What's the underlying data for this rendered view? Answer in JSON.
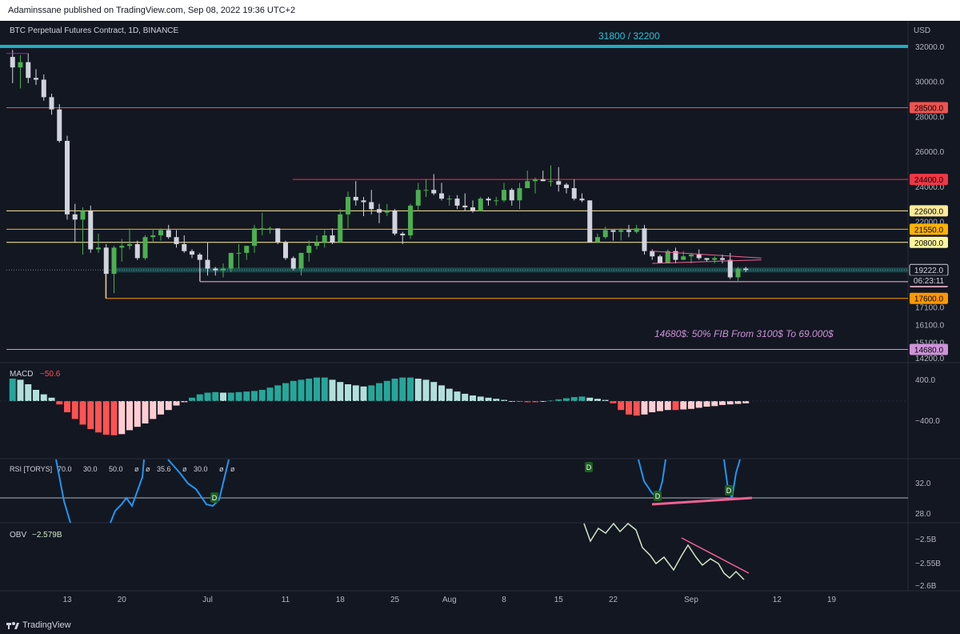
{
  "header": {
    "published_by": "Adaminssane published on TradingView.com, Sep 08, 2022 19:36 UTC+2"
  },
  "footer": {
    "brand": "TradingView"
  },
  "colors": {
    "background": "#131722",
    "candle_up": "#4caf50",
    "candle_down": "#d1d4dc",
    "macd_pos_strong": "#26a69a",
    "macd_pos_weak": "#b2dfdb",
    "macd_neg_strong": "#ff5252",
    "macd_neg_weak": "#ffcdd2",
    "rsi_line": "#2196f3",
    "obv_line": "#d1e7c7"
  },
  "chart_data": [
    {
      "type": "candlestick",
      "title": "BTC Perpetual Futures Contract, 1D, BINANCE",
      "y_axis_unit": "USD",
      "y_ticks": [
        "32000.0",
        "30000.0",
        "28000.0",
        "26000.0",
        "24000.0",
        "22000.0",
        "20800.0",
        "17100.0",
        "16100.0",
        "15100.0",
        "14200.0"
      ],
      "ylim": [
        14000,
        32700
      ],
      "x_ticks": [
        "13",
        "20",
        "Jul",
        "11",
        "18",
        "25",
        "Aug",
        "8",
        "15",
        "22",
        "Sep",
        "12",
        "19"
      ],
      "x_tick_dates": [
        "2022-06-13",
        "2022-06-20",
        "2022-07-01",
        "2022-07-11",
        "2022-07-18",
        "2022-07-25",
        "2022-08-01",
        "2022-08-08",
        "2022-08-15",
        "2022-08-22",
        "2022-09-01",
        "2022-09-12",
        "2022-09-19"
      ],
      "candles_approx": [
        {
          "d": "2022-06-06",
          "o": 31400,
          "h": 31800,
          "c": 30800,
          "l": 29900
        },
        {
          "d": "2022-06-07",
          "o": 30800,
          "h": 31500,
          "c": 31100,
          "l": 29600
        },
        {
          "d": "2022-06-08",
          "o": 31100,
          "h": 31600,
          "c": 30200,
          "l": 29900
        },
        {
          "d": "2022-06-09",
          "o": 30200,
          "h": 30700,
          "c": 30100,
          "l": 29800
        },
        {
          "d": "2022-06-10",
          "o": 30100,
          "h": 30400,
          "c": 29100,
          "l": 28900
        },
        {
          "d": "2022-06-11",
          "o": 29100,
          "h": 29300,
          "c": 28400,
          "l": 28100
        },
        {
          "d": "2022-06-12",
          "o": 28400,
          "h": 28700,
          "c": 26600,
          "l": 26500
        },
        {
          "d": "2022-06-13",
          "o": 26600,
          "h": 26900,
          "c": 22400,
          "l": 22100
        },
        {
          "d": "2022-06-14",
          "o": 22400,
          "h": 23000,
          "c": 22100,
          "l": 20800
        },
        {
          "d": "2022-06-15",
          "o": 22100,
          "h": 22800,
          "c": 22600,
          "l": 20100
        },
        {
          "d": "2022-06-16",
          "o": 22600,
          "h": 22900,
          "c": 20400,
          "l": 20200
        },
        {
          "d": "2022-06-17",
          "o": 20400,
          "h": 21300,
          "c": 20500,
          "l": 20200
        },
        {
          "d": "2022-06-18",
          "o": 20500,
          "h": 20700,
          "c": 19000,
          "l": 17600
        },
        {
          "d": "2022-06-19",
          "o": 19000,
          "h": 20600,
          "c": 20500,
          "l": 17900
        },
        {
          "d": "2022-06-20",
          "o": 20500,
          "h": 21000,
          "c": 20600,
          "l": 19700
        },
        {
          "d": "2022-06-21",
          "o": 20600,
          "h": 21600,
          "c": 20700,
          "l": 20400
        },
        {
          "d": "2022-06-22",
          "o": 20700,
          "h": 20900,
          "c": 19900,
          "l": 19800
        },
        {
          "d": "2022-06-23",
          "o": 19900,
          "h": 21200,
          "c": 21100,
          "l": 19800
        },
        {
          "d": "2022-06-24",
          "o": 21100,
          "h": 21500,
          "c": 21200,
          "l": 20800
        },
        {
          "d": "2022-06-25",
          "o": 21200,
          "h": 21600,
          "c": 21500,
          "l": 20900
        },
        {
          "d": "2022-06-26",
          "o": 21500,
          "h": 21800,
          "c": 21100,
          "l": 21000
        },
        {
          "d": "2022-06-27",
          "o": 21100,
          "h": 21500,
          "c": 20700,
          "l": 20500
        },
        {
          "d": "2022-06-28",
          "o": 20700,
          "h": 21200,
          "c": 20300,
          "l": 20200
        },
        {
          "d": "2022-06-29",
          "o": 20300,
          "h": 20400,
          "c": 20100,
          "l": 19900
        },
        {
          "d": "2022-06-30",
          "o": 20100,
          "h": 20200,
          "c": 19800,
          "l": 18600
        },
        {
          "d": "2022-07-01",
          "o": 19800,
          "h": 20800,
          "c": 19300,
          "l": 18900
        },
        {
          "d": "2022-07-02",
          "o": 19300,
          "h": 19400,
          "c": 19200,
          "l": 18900
        },
        {
          "d": "2022-07-03",
          "o": 19200,
          "h": 19600,
          "c": 19300,
          "l": 18800
        },
        {
          "d": "2022-07-04",
          "o": 19300,
          "h": 20200,
          "c": 20200,
          "l": 19100
        },
        {
          "d": "2022-07-05",
          "o": 20200,
          "h": 20700,
          "c": 20200,
          "l": 19300
        },
        {
          "d": "2022-07-06",
          "o": 20200,
          "h": 20600,
          "c": 20600,
          "l": 19800
        },
        {
          "d": "2022-07-07",
          "o": 20600,
          "h": 21800,
          "c": 21600,
          "l": 20200
        },
        {
          "d": "2022-07-08",
          "o": 21600,
          "h": 22500,
          "c": 21600,
          "l": 21200
        },
        {
          "d": "2022-07-09",
          "o": 21600,
          "h": 21700,
          "c": 21600,
          "l": 21300
        },
        {
          "d": "2022-07-10",
          "o": 21600,
          "h": 21600,
          "c": 20800,
          "l": 20700
        },
        {
          "d": "2022-07-11",
          "o": 20800,
          "h": 20900,
          "c": 19900,
          "l": 19800
        },
        {
          "d": "2022-07-12",
          "o": 19900,
          "h": 20000,
          "c": 19300,
          "l": 19200
        },
        {
          "d": "2022-07-13",
          "o": 19300,
          "h": 20200,
          "c": 20200,
          "l": 18900
        },
        {
          "d": "2022-07-14",
          "o": 20200,
          "h": 20900,
          "c": 20600,
          "l": 19700
        },
        {
          "d": "2022-07-15",
          "o": 20600,
          "h": 21200,
          "c": 20800,
          "l": 20400
        },
        {
          "d": "2022-07-16",
          "o": 20800,
          "h": 21500,
          "c": 21200,
          "l": 20500
        },
        {
          "d": "2022-07-17",
          "o": 21200,
          "h": 21600,
          "c": 20800,
          "l": 20700
        },
        {
          "d": "2022-07-18",
          "o": 20800,
          "h": 22700,
          "c": 22400,
          "l": 20800
        },
        {
          "d": "2022-07-19",
          "o": 22400,
          "h": 23700,
          "c": 23400,
          "l": 21600
        },
        {
          "d": "2022-07-20",
          "o": 23400,
          "h": 24300,
          "c": 23200,
          "l": 22900
        },
        {
          "d": "2022-07-21",
          "o": 23200,
          "h": 23400,
          "c": 23100,
          "l": 22300
        },
        {
          "d": "2022-07-22",
          "o": 23100,
          "h": 23800,
          "c": 22700,
          "l": 22400
        },
        {
          "d": "2022-07-23",
          "o": 22700,
          "h": 23000,
          "c": 22500,
          "l": 21900
        },
        {
          "d": "2022-07-24",
          "o": 22500,
          "h": 23000,
          "c": 22600,
          "l": 22300
        },
        {
          "d": "2022-07-25",
          "o": 22600,
          "h": 22700,
          "c": 21300,
          "l": 21200
        },
        {
          "d": "2022-07-26",
          "o": 21300,
          "h": 21400,
          "c": 21200,
          "l": 20700
        },
        {
          "d": "2022-07-27",
          "o": 21200,
          "h": 23000,
          "c": 22900,
          "l": 21000
        },
        {
          "d": "2022-07-28",
          "o": 22900,
          "h": 24200,
          "c": 23800,
          "l": 22600
        },
        {
          "d": "2022-07-29",
          "o": 23800,
          "h": 24400,
          "c": 23800,
          "l": 23400
        },
        {
          "d": "2022-07-30",
          "o": 23800,
          "h": 24700,
          "c": 23600,
          "l": 23500
        },
        {
          "d": "2022-07-31",
          "o": 23600,
          "h": 24200,
          "c": 23300,
          "l": 23200
        },
        {
          "d": "2022-08-01",
          "o": 23300,
          "h": 23500,
          "c": 23300,
          "l": 22900
        },
        {
          "d": "2022-08-02",
          "o": 23300,
          "h": 23500,
          "c": 22900,
          "l": 22700
        },
        {
          "d": "2022-08-03",
          "o": 22900,
          "h": 23600,
          "c": 22800,
          "l": 22600
        },
        {
          "d": "2022-08-04",
          "o": 22800,
          "h": 23200,
          "c": 22600,
          "l": 22500
        },
        {
          "d": "2022-08-05",
          "o": 22600,
          "h": 23400,
          "c": 23300,
          "l": 22600
        },
        {
          "d": "2022-08-06",
          "o": 23300,
          "h": 23400,
          "c": 23200,
          "l": 22900
        },
        {
          "d": "2022-08-07",
          "o": 23200,
          "h": 23400,
          "c": 23200,
          "l": 22900
        },
        {
          "d": "2022-08-08",
          "o": 23200,
          "h": 24200,
          "c": 23800,
          "l": 23100
        },
        {
          "d": "2022-08-09",
          "o": 23800,
          "h": 23900,
          "c": 23200,
          "l": 22900
        },
        {
          "d": "2022-08-10",
          "o": 23200,
          "h": 24200,
          "c": 23900,
          "l": 22700
        },
        {
          "d": "2022-08-11",
          "o": 23900,
          "h": 24900,
          "c": 24300,
          "l": 23900
        },
        {
          "d": "2022-08-12",
          "o": 24300,
          "h": 24500,
          "c": 24400,
          "l": 23600
        },
        {
          "d": "2022-08-13",
          "o": 24400,
          "h": 24900,
          "c": 24300,
          "l": 24300
        },
        {
          "d": "2022-08-14",
          "o": 24300,
          "h": 25200,
          "c": 24300,
          "l": 24000
        },
        {
          "d": "2022-08-15",
          "o": 24300,
          "h": 25100,
          "c": 24100,
          "l": 23700
        },
        {
          "d": "2022-08-16",
          "o": 24100,
          "h": 24200,
          "c": 23900,
          "l": 23600
        },
        {
          "d": "2022-08-17",
          "o": 23900,
          "h": 24400,
          "c": 23300,
          "l": 23200
        },
        {
          "d": "2022-08-18",
          "o": 23300,
          "h": 23600,
          "c": 23200,
          "l": 23100
        },
        {
          "d": "2022-08-19",
          "o": 23200,
          "h": 23200,
          "c": 20800,
          "l": 20800
        },
        {
          "d": "2022-08-20",
          "o": 20800,
          "h": 21300,
          "c": 21100,
          "l": 20800
        },
        {
          "d": "2022-08-21",
          "o": 21100,
          "h": 21700,
          "c": 21500,
          "l": 21000
        },
        {
          "d": "2022-08-22",
          "o": 21500,
          "h": 21500,
          "c": 21400,
          "l": 20900
        },
        {
          "d": "2022-08-23",
          "o": 21400,
          "h": 21600,
          "c": 21500,
          "l": 20900
        },
        {
          "d": "2022-08-24",
          "o": 21500,
          "h": 21800,
          "c": 21400,
          "l": 21100
        },
        {
          "d": "2022-08-25",
          "o": 21400,
          "h": 21800,
          "c": 21600,
          "l": 21300
        },
        {
          "d": "2022-08-26",
          "o": 21600,
          "h": 21800,
          "c": 20300,
          "l": 20100
        },
        {
          "d": "2022-08-27",
          "o": 20300,
          "h": 20400,
          "c": 20000,
          "l": 19800
        },
        {
          "d": "2022-08-28",
          "o": 20000,
          "h": 20100,
          "c": 19600,
          "l": 19600
        },
        {
          "d": "2022-08-29",
          "o": 19600,
          "h": 20400,
          "c": 20300,
          "l": 19600
        },
        {
          "d": "2022-08-30",
          "o": 20300,
          "h": 20500,
          "c": 19800,
          "l": 19600
        },
        {
          "d": "2022-08-31",
          "o": 19800,
          "h": 20300,
          "c": 20000,
          "l": 19800
        },
        {
          "d": "2022-09-01",
          "o": 20000,
          "h": 20200,
          "c": 20100,
          "l": 19600
        },
        {
          "d": "2022-09-02",
          "o": 20100,
          "h": 20400,
          "c": 19900,
          "l": 19800
        },
        {
          "d": "2022-09-03",
          "o": 19900,
          "h": 19900,
          "c": 19800,
          "l": 19700
        },
        {
          "d": "2022-09-04",
          "o": 19800,
          "h": 20000,
          "c": 19900,
          "l": 19600
        },
        {
          "d": "2022-09-05",
          "o": 19900,
          "h": 20100,
          "c": 19800,
          "l": 19600
        },
        {
          "d": "2022-09-06",
          "o": 19800,
          "h": 20200,
          "c": 18800,
          "l": 18700
        },
        {
          "d": "2022-09-07",
          "o": 18800,
          "h": 19400,
          "c": 19300,
          "l": 18600
        },
        {
          "d": "2022-09-08",
          "o": 19300,
          "h": 19400,
          "c": 19222,
          "l": 19100
        }
      ],
      "levels": [
        {
          "name": "32000",
          "price": 32000,
          "color": "#26c6da",
          "label": "31800 / 32200"
        },
        {
          "name": "28500",
          "price": 28500,
          "color": "#ef5350",
          "label": "28500.0"
        },
        {
          "name": "24400",
          "price": 24400,
          "color": "#f23645",
          "label": "24400.0"
        },
        {
          "name": "22600",
          "price": 22600,
          "color": "#ffeb99",
          "label": "22600.0"
        },
        {
          "name": "21550",
          "price": 21550,
          "color": "#ffb300",
          "label": "21550.0"
        },
        {
          "name": "20800",
          "price": 20800,
          "color": "#fff59d",
          "label": "20800.0"
        },
        {
          "name": "19222",
          "price": 19222,
          "color": "#787b86",
          "label": "19222.0"
        },
        {
          "name": "18550",
          "price": 18550,
          "color": "#f8bbd0",
          "label": "18550.0"
        },
        {
          "name": "17600",
          "price": 17600,
          "color": "#ff9800",
          "label": "17600.0"
        },
        {
          "name": "14680",
          "price": 14680,
          "color": "#ce93d8",
          "label": "14680.0"
        }
      ],
      "countdown": "06:23:11",
      "annotation": "14680$: 50% FIB From 3100$ To 69.000$"
    },
    {
      "type": "histogram",
      "title": "MACD",
      "value": "−50.6",
      "y_ticks": [
        "400.0",
        "−400.0"
      ]
    },
    {
      "type": "line",
      "title": "RSI [TORYS]",
      "params": [
        "70.0",
        "30.0",
        "50.0",
        "ø",
        "ø",
        "35.6",
        "ø",
        "30.0",
        "ø",
        "ø"
      ],
      "y_ticks": [
        "32.0",
        "28.0"
      ],
      "divergence_markers": [
        "D",
        "D",
        "D",
        "D"
      ]
    },
    {
      "type": "line",
      "title": "OBV",
      "value": "−2.579B",
      "y_ticks": [
        "−2.5B",
        "−2.55B",
        "−2.6B"
      ]
    }
  ]
}
